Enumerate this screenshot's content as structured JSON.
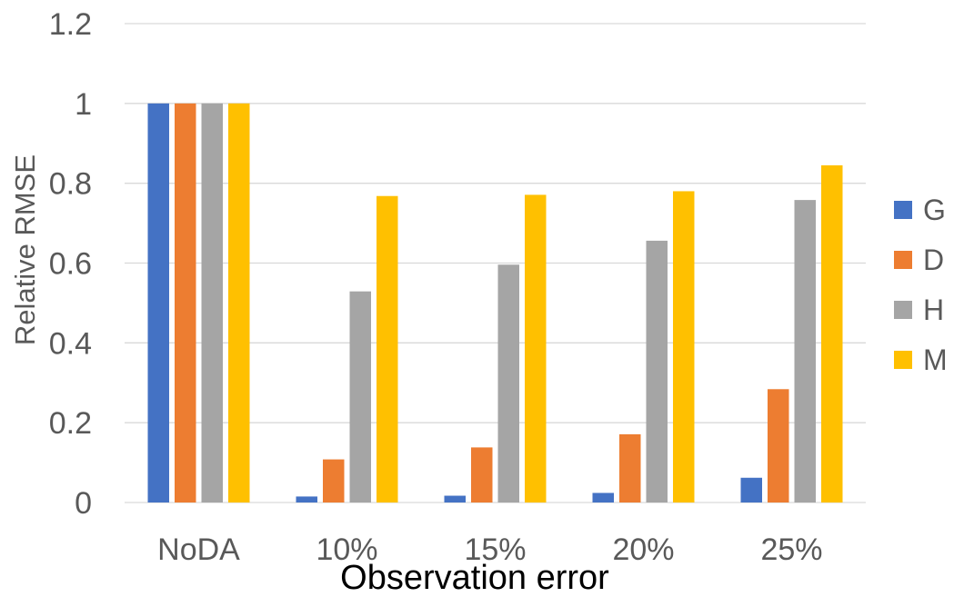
{
  "chart_data": {
    "type": "bar",
    "categories": [
      "NoDA",
      "10%",
      "15%",
      "20%",
      "25%"
    ],
    "series": [
      {
        "name": "G",
        "color": "#4472c4",
        "values": [
          1.0,
          0.015,
          0.017,
          0.024,
          0.062
        ]
      },
      {
        "name": "D",
        "color": "#ed7d31",
        "values": [
          1.0,
          0.108,
          0.138,
          0.171,
          0.284
        ]
      },
      {
        "name": "H",
        "color": "#a5a5a5",
        "values": [
          1.0,
          0.529,
          0.596,
          0.656,
          0.758
        ]
      },
      {
        "name": "M",
        "color": "#ffc000",
        "values": [
          1.0,
          0.768,
          0.771,
          0.78,
          0.845
        ]
      }
    ],
    "title": "",
    "xlabel": "Observation error",
    "ylabel": "Relative RMSE",
    "ylim": [
      0,
      1.2
    ],
    "yticks": [
      "0",
      "0.2",
      "0.4",
      "0.6",
      "0.8",
      "1",
      "1.2"
    ],
    "ytick_values": [
      0,
      0.2,
      0.4,
      0.6,
      0.8,
      1.0,
      1.2
    ],
    "grid": true,
    "legend_position": "right"
  }
}
